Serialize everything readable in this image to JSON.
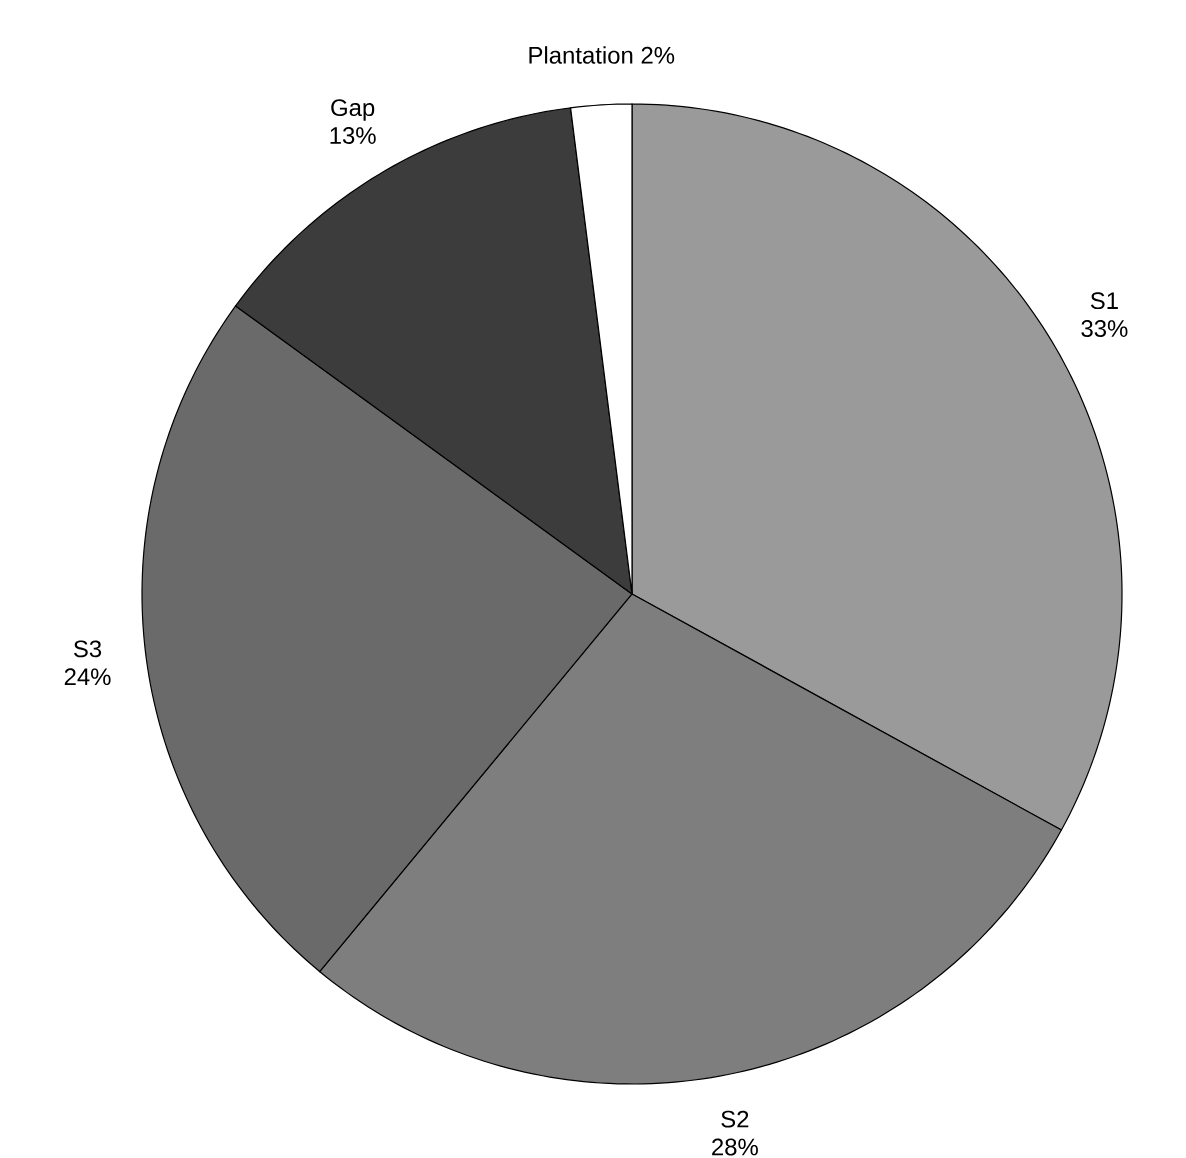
{
  "chart_data": {
    "type": "pie",
    "categories": [
      "S1",
      "S2",
      "S3",
      "Gap",
      "Plantation"
    ],
    "values": [
      33,
      28,
      24,
      13,
      2
    ],
    "value_labels": [
      "33%",
      "28%",
      "24%",
      "13%",
      "2%"
    ],
    "colors": [
      "#9a9a9a",
      "#7e7e7e",
      "#6a6a6a",
      "#3c3c3c",
      "#ffffff"
    ],
    "legend": false
  }
}
